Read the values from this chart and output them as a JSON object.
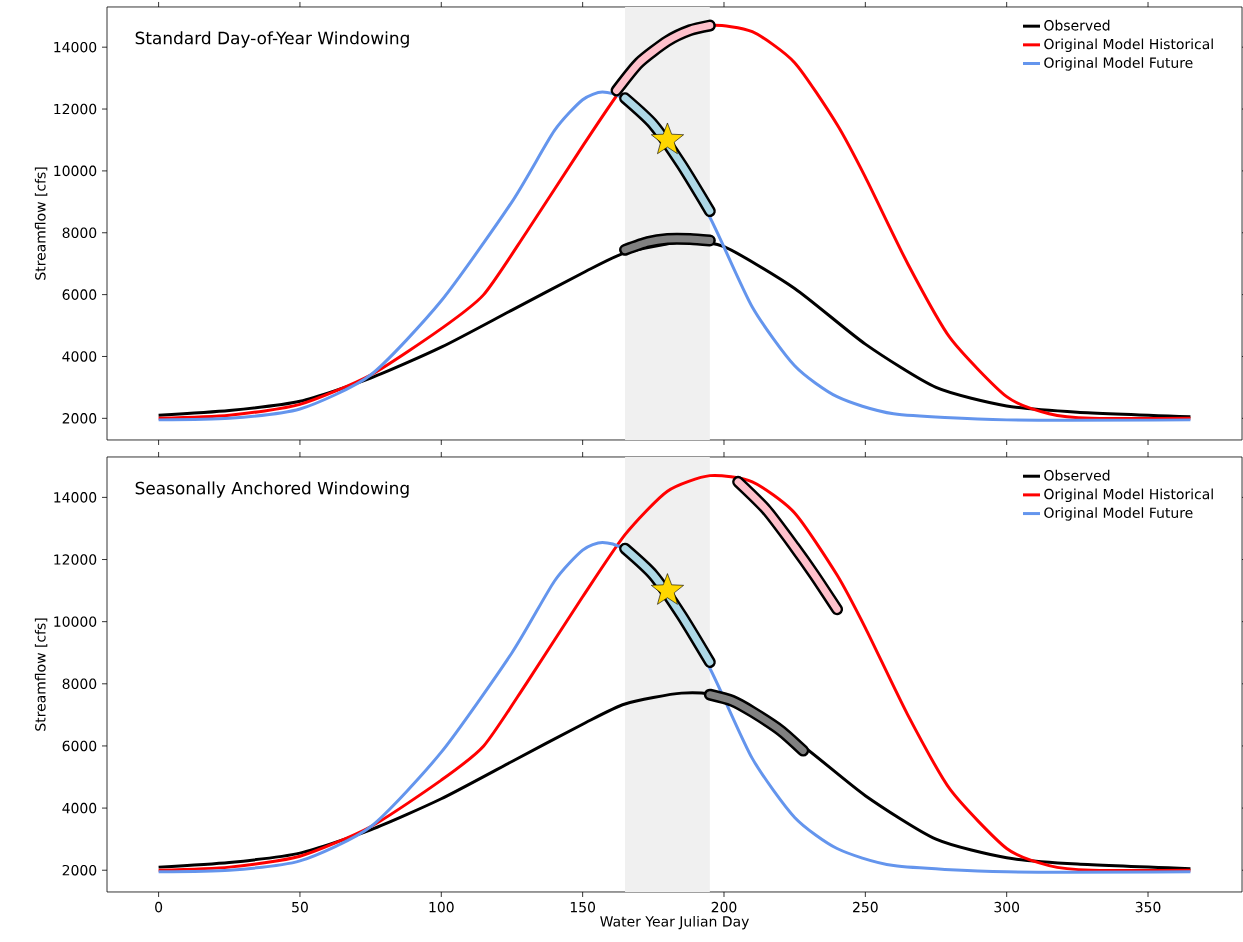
{
  "chart_data": [
    {
      "type": "line",
      "title": "Standard Day-of-Year Windowing",
      "ylabel": "Streamflow [cfs]",
      "xlim": [
        -18.25,
        383.25
      ],
      "ylim": [
        1300,
        15300
      ],
      "xticks": [
        0,
        50,
        100,
        150,
        200,
        250,
        300,
        350
      ],
      "yticks": [
        2000,
        4000,
        6000,
        8000,
        10000,
        12000,
        14000
      ],
      "tick_labels": "y",
      "legend": "top right",
      "line_style": "solid",
      "bands": [
        {
          "axis": "x",
          "from": 165,
          "to": 195,
          "color": "#f0f0f0"
        }
      ],
      "series": [
        {
          "name": "Observed",
          "color": "#000000",
          "x": [
            0,
            25,
            50,
            75,
            100,
            125,
            150,
            165,
            185,
            200,
            225,
            250,
            275,
            300,
            325,
            365
          ],
          "values": [
            2100,
            2250,
            2550,
            3300,
            4300,
            5500,
            6700,
            7350,
            7700,
            7550,
            6200,
            4400,
            3000,
            2400,
            2200,
            2050
          ]
        },
        {
          "name": "Original Model Historical",
          "color": "#ff0000",
          "x": [
            0,
            25,
            50,
            75,
            100,
            115,
            130,
            150,
            165,
            180,
            195,
            210,
            225,
            240,
            250,
            265,
            280,
            300,
            315,
            330,
            365
          ],
          "values": [
            2000,
            2100,
            2450,
            3400,
            4900,
            6000,
            8000,
            10800,
            12800,
            14200,
            14700,
            14500,
            13500,
            11500,
            9800,
            7000,
            4600,
            2700,
            2150,
            2000,
            2000
          ]
        },
        {
          "name": "Original Model Future",
          "color": "#6495ed",
          "x": [
            0,
            25,
            50,
            75,
            100,
            125,
            140,
            150,
            157,
            165,
            180,
            195,
            210,
            225,
            240,
            260,
            300,
            365
          ],
          "values": [
            1950,
            2000,
            2300,
            3400,
            5800,
            9000,
            11300,
            12300,
            12550,
            12300,
            10800,
            8500,
            5600,
            3700,
            2700,
            2150,
            1950,
            1950
          ]
        },
        {
          "type": "line",
          "color": "#000000",
          "x": [
            162,
            170,
            180,
            188,
            195
          ],
          "values": [
            12600,
            13500,
            14200,
            14550,
            14700
          ]
        },
        {
          "type": "line",
          "color": "#ffc0cb",
          "x": [
            162,
            170,
            180,
            188,
            195
          ],
          "values": [
            12600,
            13500,
            14200,
            14550,
            14700
          ]
        },
        {
          "type": "line",
          "color": "#000000",
          "x": [
            165,
            175,
            185,
            195
          ],
          "values": [
            12350,
            11500,
            10200,
            8700
          ]
        },
        {
          "type": "line",
          "color": "#add8e6",
          "x": [
            165,
            175,
            185,
            195
          ],
          "values": [
            12350,
            11500,
            10200,
            8700
          ]
        },
        {
          "type": "line",
          "color": "#000000",
          "x": [
            165,
            173,
            180,
            188,
            195
          ],
          "values": [
            7450,
            7700,
            7800,
            7800,
            7750
          ]
        },
        {
          "type": "line",
          "color": "#808080",
          "x": [
            165,
            173,
            180,
            188,
            195
          ],
          "values": [
            7450,
            7700,
            7800,
            7800,
            7750
          ]
        },
        {
          "type": "scatter",
          "color": "#ffd700",
          "marker": "star",
          "x": [
            180
          ],
          "values": [
            11000
          ]
        }
      ]
    },
    {
      "type": "line",
      "title": "Seasonally Anchored Windowing",
      "ylabel": "Streamflow [cfs]",
      "xlabel": "Water Year Julian Day",
      "xlim": [
        -18.25,
        383.25
      ],
      "ylim": [
        1300,
        15300
      ],
      "xticks": [
        0,
        50,
        100,
        150,
        200,
        250,
        300,
        350
      ],
      "yticks": [
        2000,
        4000,
        6000,
        8000,
        10000,
        12000,
        14000
      ],
      "legend": "top right",
      "line_style": "solid",
      "bands": [
        {
          "axis": "x",
          "from": 165,
          "to": 195,
          "color": "#f0f0f0"
        }
      ],
      "series": [
        {
          "name": "Observed",
          "color": "#000000",
          "x": [
            0,
            25,
            50,
            75,
            100,
            125,
            150,
            165,
            185,
            200,
            225,
            250,
            275,
            300,
            325,
            365
          ],
          "values": [
            2100,
            2250,
            2550,
            3300,
            4300,
            5500,
            6700,
            7350,
            7700,
            7550,
            6200,
            4400,
            3000,
            2400,
            2200,
            2050
          ]
        },
        {
          "name": "Original Model Historical",
          "color": "#ff0000",
          "x": [
            0,
            25,
            50,
            75,
            100,
            115,
            130,
            150,
            165,
            180,
            195,
            210,
            225,
            240,
            250,
            265,
            280,
            300,
            315,
            330,
            365
          ],
          "values": [
            2000,
            2100,
            2450,
            3400,
            4900,
            6000,
            8000,
            10800,
            12800,
            14200,
            14700,
            14500,
            13500,
            11500,
            9800,
            7000,
            4600,
            2700,
            2150,
            2000,
            2000
          ]
        },
        {
          "name": "Original Model Future",
          "color": "#6495ed",
          "x": [
            0,
            25,
            50,
            75,
            100,
            125,
            140,
            150,
            157,
            165,
            180,
            195,
            210,
            225,
            240,
            260,
            300,
            365
          ],
          "values": [
            1950,
            2000,
            2300,
            3400,
            5800,
            9000,
            11300,
            12300,
            12550,
            12300,
            10800,
            8500,
            5600,
            3700,
            2700,
            2150,
            1950,
            1950
          ]
        },
        {
          "type": "line",
          "color": "#000000",
          "x": [
            205,
            215,
            225,
            232,
            240
          ],
          "values": [
            14500,
            13600,
            12400,
            11500,
            10400
          ]
        },
        {
          "type": "line",
          "color": "#ffc0cb",
          "x": [
            205,
            215,
            225,
            232,
            240
          ],
          "values": [
            14500,
            13600,
            12400,
            11500,
            10400
          ]
        },
        {
          "type": "line",
          "color": "#000000",
          "x": [
            165,
            175,
            185,
            195
          ],
          "values": [
            12350,
            11500,
            10200,
            8700
          ]
        },
        {
          "type": "line",
          "color": "#add8e6",
          "x": [
            165,
            175,
            185,
            195
          ],
          "values": [
            12350,
            11500,
            10200,
            8700
          ]
        },
        {
          "type": "line",
          "color": "#000000",
          "x": [
            195,
            203,
            210,
            220,
            228
          ],
          "values": [
            7650,
            7450,
            7100,
            6500,
            5850
          ]
        },
        {
          "type": "line",
          "color": "#808080",
          "x": [
            195,
            203,
            210,
            220,
            228
          ],
          "values": [
            7650,
            7450,
            7100,
            6500,
            5850
          ]
        },
        {
          "type": "scatter",
          "color": "#ffd700",
          "marker": "star",
          "x": [
            180
          ],
          "values": [
            11000
          ]
        }
      ]
    }
  ]
}
